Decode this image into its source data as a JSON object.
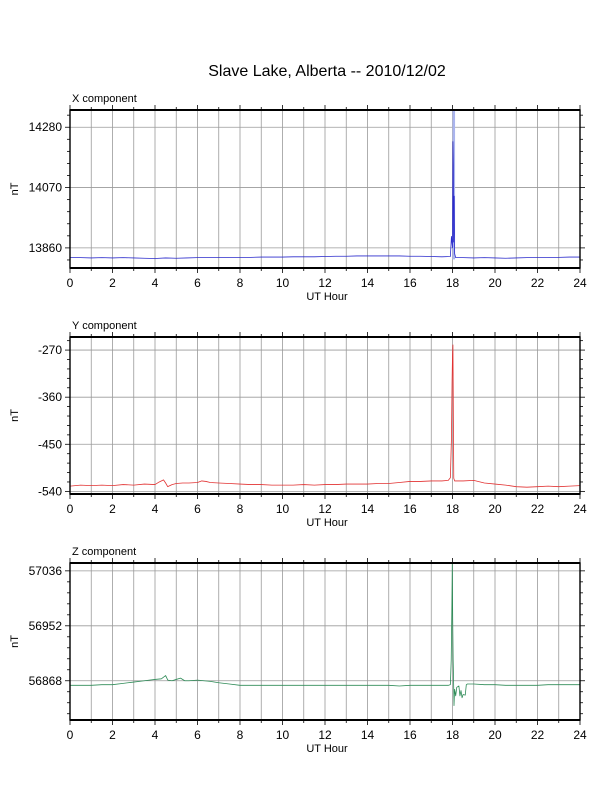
{
  "page_title": "Slave Lake, Alberta -- 2010/12/02",
  "chart_data": [
    {
      "type": "line",
      "component_label": "X component",
      "ylabel": "nT",
      "xlabel": "UT Hour",
      "xlim": [
        0,
        24
      ],
      "ylim": [
        13790,
        14340
      ],
      "x_ticks": [
        0,
        2,
        4,
        6,
        8,
        10,
        12,
        14,
        16,
        18,
        20,
        22,
        24
      ],
      "y_ticks": [
        13860,
        14070,
        14280
      ],
      "color": "#2b2bcc",
      "series": [
        {
          "points": [
            [
              0,
              13827
            ],
            [
              0.5,
              13826
            ],
            [
              1,
              13825
            ],
            [
              1.5,
              13826
            ],
            [
              2,
              13825
            ],
            [
              2.5,
              13826
            ],
            [
              3,
              13825
            ],
            [
              3.5,
              13824
            ],
            [
              4,
              13823
            ],
            [
              4.5,
              13825
            ],
            [
              5,
              13824
            ],
            [
              5.5,
              13825
            ],
            [
              6,
              13826
            ],
            [
              6.5,
              13826
            ],
            [
              7,
              13826
            ],
            [
              7.5,
              13827
            ],
            [
              8,
              13827
            ],
            [
              8.5,
              13827
            ],
            [
              9,
              13828
            ],
            [
              9.5,
              13828
            ],
            [
              10,
              13828
            ],
            [
              10.5,
              13829
            ],
            [
              11,
              13829
            ],
            [
              11.5,
              13829
            ],
            [
              12,
              13830
            ],
            [
              12.5,
              13831
            ],
            [
              13,
              13831
            ],
            [
              13.5,
              13832
            ],
            [
              14,
              13832
            ],
            [
              14.5,
              13832
            ],
            [
              15,
              13832
            ],
            [
              15.5,
              13832
            ],
            [
              16,
              13831
            ],
            [
              16.5,
              13831
            ],
            [
              17,
              13830
            ],
            [
              17.5,
              13829
            ],
            [
              17.9,
              13830
            ],
            [
              17.95,
              13900
            ],
            [
              18.0,
              13860
            ],
            [
              18.02,
              14230
            ],
            [
              18.04,
              14150
            ],
            [
              18.05,
              13880
            ],
            [
              18.08,
              14040
            ],
            [
              18.1,
              13840
            ],
            [
              18.15,
              13826
            ],
            [
              18.5,
              13826
            ],
            [
              19,
              13825
            ],
            [
              19.5,
              13826
            ],
            [
              20,
              13825
            ],
            [
              20.5,
              13824
            ],
            [
              21,
              13825
            ],
            [
              21.5,
              13826
            ],
            [
              22,
              13826
            ],
            [
              22.5,
              13826
            ],
            [
              23,
              13827
            ],
            [
              23.5,
              13828
            ],
            [
              24,
              13828
            ]
          ]
        }
      ],
      "spike_band": {
        "x_from": 18.0,
        "x_to": 18.12,
        "y_from": 13820,
        "y_to": 14340,
        "color": "#aab4ee"
      }
    },
    {
      "type": "line",
      "component_label": "Y component",
      "ylabel": "nT",
      "xlabel": "UT Hour",
      "xlim": [
        0,
        24
      ],
      "ylim": [
        -545,
        -245
      ],
      "x_ticks": [
        0,
        2,
        4,
        6,
        8,
        10,
        12,
        14,
        16,
        18,
        20,
        22,
        24
      ],
      "y_ticks": [
        -540,
        -450,
        -360,
        -270
      ],
      "color": "#e23232",
      "series": [
        {
          "points": [
            [
              0,
              -530
            ],
            [
              0.5,
              -528
            ],
            [
              1,
              -529
            ],
            [
              1.5,
              -528
            ],
            [
              2,
              -529
            ],
            [
              2.5,
              -527
            ],
            [
              3,
              -528
            ],
            [
              3.5,
              -526
            ],
            [
              4,
              -527
            ],
            [
              4.2,
              -522
            ],
            [
              4.4,
              -518
            ],
            [
              4.5,
              -524
            ],
            [
              4.6,
              -531
            ],
            [
              4.8,
              -527
            ],
            [
              5,
              -525
            ],
            [
              5.3,
              -524
            ],
            [
              5.6,
              -524
            ],
            [
              6,
              -523
            ],
            [
              6.2,
              -520
            ],
            [
              6.4,
              -521
            ],
            [
              6.6,
              -523
            ],
            [
              7,
              -524
            ],
            [
              7.5,
              -525
            ],
            [
              8,
              -526
            ],
            [
              8.5,
              -527
            ],
            [
              9,
              -527
            ],
            [
              9.5,
              -528
            ],
            [
              10,
              -528
            ],
            [
              10.5,
              -528
            ],
            [
              11,
              -527
            ],
            [
              11.5,
              -528
            ],
            [
              12,
              -527
            ],
            [
              12.5,
              -527
            ],
            [
              13,
              -526
            ],
            [
              13.5,
              -526
            ],
            [
              14,
              -526
            ],
            [
              14.5,
              -525
            ],
            [
              15,
              -525
            ],
            [
              15.5,
              -523
            ],
            [
              16,
              -521
            ],
            [
              16.5,
              -521
            ],
            [
              17,
              -520
            ],
            [
              17.5,
              -520
            ],
            [
              17.8,
              -519
            ],
            [
              17.9,
              -514
            ],
            [
              17.95,
              -440
            ],
            [
              17.98,
              -330
            ],
            [
              18.0,
              -280
            ],
            [
              18.02,
              -260
            ],
            [
              18.04,
              -400
            ],
            [
              18.06,
              -515
            ],
            [
              18.1,
              -520
            ],
            [
              18.5,
              -520
            ],
            [
              19,
              -519
            ],
            [
              19.5,
              -524
            ],
            [
              20,
              -526
            ],
            [
              20.5,
              -528
            ],
            [
              21,
              -531
            ],
            [
              21.5,
              -532
            ],
            [
              22,
              -531
            ],
            [
              22.5,
              -530
            ],
            [
              23,
              -531
            ],
            [
              23.5,
              -530
            ],
            [
              24,
              -529
            ]
          ]
        }
      ]
    },
    {
      "type": "line",
      "component_label": "Z component",
      "ylabel": "nT",
      "xlabel": "UT Hour",
      "xlim": [
        0,
        24
      ],
      "ylim": [
        56808,
        57048
      ],
      "x_ticks": [
        0,
        2,
        4,
        6,
        8,
        10,
        12,
        14,
        16,
        18,
        20,
        22,
        24
      ],
      "y_ticks": [
        56868,
        56952,
        57036
      ],
      "color": "#2e8b57",
      "series": [
        {
          "points": [
            [
              0,
              56861
            ],
            [
              0.5,
              56861
            ],
            [
              1,
              56861
            ],
            [
              1.5,
              56862
            ],
            [
              2,
              56862
            ],
            [
              2.5,
              56864
            ],
            [
              3,
              56866
            ],
            [
              3.5,
              56868
            ],
            [
              4,
              56870
            ],
            [
              4.3,
              56871
            ],
            [
              4.5,
              56876
            ],
            [
              4.6,
              56869
            ],
            [
              4.8,
              56868
            ],
            [
              5,
              56870
            ],
            [
              5.2,
              56872
            ],
            [
              5.4,
              56868
            ],
            [
              5.6,
              56868
            ],
            [
              6,
              56869
            ],
            [
              6.3,
              56868
            ],
            [
              6.6,
              56867
            ],
            [
              7,
              56865
            ],
            [
              7.5,
              56863
            ],
            [
              8,
              56861
            ],
            [
              8.5,
              56861
            ],
            [
              9,
              56861
            ],
            [
              9.5,
              56861
            ],
            [
              10,
              56861
            ],
            [
              10.5,
              56861
            ],
            [
              11,
              56861
            ],
            [
              11.5,
              56861
            ],
            [
              12,
              56861
            ],
            [
              12.5,
              56861
            ],
            [
              13,
              56861
            ],
            [
              13.5,
              56861
            ],
            [
              14,
              56861
            ],
            [
              14.5,
              56861
            ],
            [
              15,
              56861
            ],
            [
              15.5,
              56860
            ],
            [
              16,
              56861
            ],
            [
              16.5,
              56861
            ],
            [
              17,
              56861
            ],
            [
              17.5,
              56861
            ],
            [
              17.8,
              56861
            ],
            [
              17.9,
              56862
            ],
            [
              17.94,
              56900
            ],
            [
              17.97,
              56980
            ],
            [
              17.99,
              57048
            ],
            [
              18.01,
              56960
            ],
            [
              18.03,
              56900
            ],
            [
              18.05,
              56870
            ],
            [
              18.07,
              56830
            ],
            [
              18.1,
              56855
            ],
            [
              18.15,
              56845
            ],
            [
              18.2,
              56858
            ],
            [
              18.3,
              56860
            ],
            [
              18.35,
              56845
            ],
            [
              18.4,
              56853
            ],
            [
              18.45,
              56842
            ],
            [
              18.5,
              56847
            ],
            [
              18.6,
              56846
            ],
            [
              18.65,
              56862
            ],
            [
              18.7,
              56863
            ],
            [
              19,
              56863
            ],
            [
              19.5,
              56862
            ],
            [
              20,
              56862
            ],
            [
              20.5,
              56861
            ],
            [
              21,
              56861
            ],
            [
              21.5,
              56861
            ],
            [
              22,
              56861
            ],
            [
              22.5,
              56862
            ],
            [
              23,
              56862
            ],
            [
              23.5,
              56862
            ],
            [
              24,
              56862
            ]
          ]
        }
      ]
    }
  ]
}
